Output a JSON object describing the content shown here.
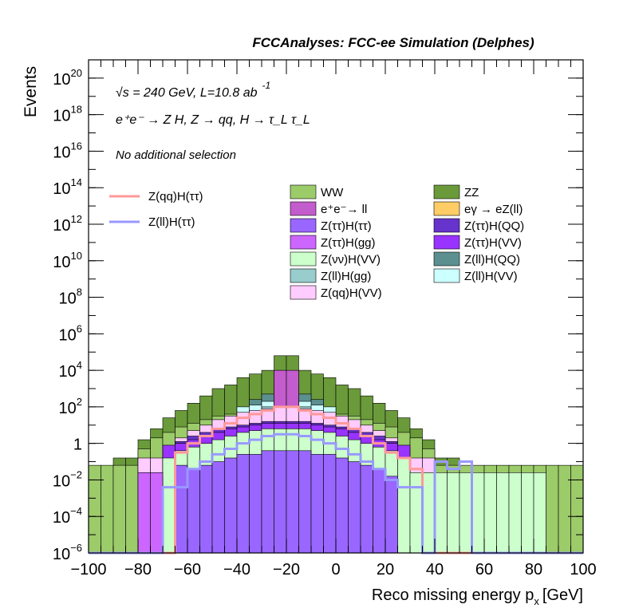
{
  "chart_data": {
    "type": "histogram",
    "title": "FCCAnalyses: FCC-ee Simulation (Delphes)",
    "xlabel": "Reco missing energy p",
    "xlabel_sub": "x",
    "xlabel_unit": "[GeV]",
    "ylabel": "Events",
    "xlim": [
      -100,
      100
    ],
    "ylim": [
      1e-06,
      1e+21
    ],
    "log_y": true,
    "grid": false,
    "bin_width": 5,
    "x_ticks": [
      "−100",
      "−80",
      "−60",
      "−40",
      "−20",
      "0",
      "20",
      "40",
      "60",
      "80",
      "100"
    ],
    "x_tick_values": [
      -100,
      -80,
      -60,
      -40,
      -20,
      0,
      20,
      40,
      60,
      80,
      100
    ],
    "y_ticks": [
      {
        "exp": -6,
        "base": "10",
        "sup": "−6"
      },
      {
        "exp": -4,
        "base": "10",
        "sup": "−4"
      },
      {
        "exp": -2,
        "base": "10",
        "sup": "−2"
      },
      {
        "exp": 0,
        "base": "1",
        "sup": ""
      },
      {
        "exp": 2,
        "base": "10",
        "sup": "2"
      },
      {
        "exp": 4,
        "base": "10",
        "sup": "4"
      },
      {
        "exp": 6,
        "base": "10",
        "sup": "6"
      },
      {
        "exp": 8,
        "base": "10",
        "sup": "8"
      },
      {
        "exp": 10,
        "base": "10",
        "sup": "10"
      },
      {
        "exp": 12,
        "base": "10",
        "sup": "12"
      },
      {
        "exp": 14,
        "base": "10",
        "sup": "14"
      },
      {
        "exp": 16,
        "base": "10",
        "sup": "16"
      },
      {
        "exp": 18,
        "base": "10",
        "sup": "18"
      },
      {
        "exp": 20,
        "base": "10",
        "sup": "20"
      }
    ],
    "annotations": {
      "line1": "√s = 240 GeV, L=10.8 ab",
      "line1_sup": "-1",
      "line2": "e⁺e⁻ → Z H, Z → qq, H → τ_L τ_L",
      "line3": "No additional selection"
    },
    "stack_layers": [
      {
        "name": "ZZ",
        "color": "#6a9a3a",
        "x_ranges": [
          -100,
          100
        ],
        "log10_totals": [
          -1.8,
          -1.8,
          -0.8,
          -0.8,
          0.2,
          0.8,
          1.4,
          1.8,
          2.2,
          2.6,
          3.0,
          3.2,
          3.6,
          3.8,
          4.0,
          4.8,
          4.8,
          4.0,
          3.8,
          3.6,
          3.2,
          3.0,
          2.6,
          2.2,
          1.8,
          1.4,
          0.8,
          0.2,
          -0.8,
          -0.8,
          -1.8,
          -1.8,
          -3.0,
          -3.0,
          -3.0,
          -3.0,
          -3.0,
          -3.0,
          -3.0,
          -3.0
        ]
      },
      {
        "name": "WW",
        "color": "#9ccb6a",
        "log10_totals": [
          -1.2,
          -1.2,
          -1.2,
          -1.2,
          -0.3,
          0.3,
          0.6,
          0.9,
          1.1,
          1.3,
          1.5,
          1.6,
          1.8,
          1.9,
          2.0,
          2.1,
          2.1,
          2.0,
          1.9,
          1.8,
          1.6,
          1.5,
          1.3,
          1.1,
          0.9,
          0.6,
          0.3,
          -0.3,
          -1.2,
          -1.2,
          -1.2,
          -1.2,
          -1.2,
          -1.2,
          -1.2,
          -1.2,
          -1.2,
          -1.2,
          -1.2,
          -1.2
        ]
      },
      {
        "name": "Z(ll)H(QQ)",
        "color": "#5c9090",
        "log10_totals": [
          null,
          null,
          null,
          null,
          null,
          null,
          null,
          null,
          null,
          null,
          null,
          null,
          null,
          2.4,
          2.7,
          3.3,
          3.3,
          2.7,
          2.4,
          null,
          null,
          null,
          null,
          null,
          null,
          null,
          null,
          null,
          null,
          null,
          null,
          null,
          null,
          null,
          null,
          null,
          null,
          null,
          null,
          null
        ]
      },
      {
        "name": "Z(ll)H(VV)",
        "color": "#ccffff",
        "log10_totals": [
          null,
          null,
          null,
          null,
          null,
          null,
          null,
          null,
          null,
          null,
          null,
          null,
          2.0,
          2.1,
          2.3,
          2.5,
          2.5,
          2.3,
          2.1,
          2.0,
          null,
          null,
          null,
          null,
          null,
          null,
          null,
          null,
          null,
          null,
          null,
          null,
          null,
          null,
          null,
          null,
          null,
          null,
          null,
          null
        ]
      },
      {
        "name": "Z(ll)H(gg)",
        "color": "#99cccc",
        "log10_totals": [
          null,
          null,
          null,
          null,
          null,
          null,
          null,
          null,
          null,
          null,
          null,
          null,
          null,
          null,
          2.0,
          2.6,
          2.6,
          2.0,
          null,
          null,
          null,
          null,
          null,
          null,
          null,
          null,
          null,
          null,
          null,
          null,
          null,
          null,
          null,
          null,
          null,
          null,
          null,
          null,
          null,
          null
        ]
      },
      {
        "name": "e⁺e⁻→ ll",
        "color": "#c35ccc",
        "log10_totals": [
          null,
          null,
          null,
          null,
          null,
          null,
          null,
          null,
          null,
          null,
          null,
          null,
          null,
          null,
          null,
          4.0,
          4.0,
          null,
          null,
          null,
          null,
          null,
          null,
          null,
          null,
          null,
          null,
          null,
          null,
          null,
          null,
          null,
          null,
          null,
          null,
          null,
          null,
          null,
          null,
          null
        ]
      },
      {
        "name": "eγ → eZ(ll)",
        "color": "#ffcc66",
        "log10_totals": [
          null,
          null,
          null,
          null,
          null,
          null,
          null,
          null,
          null,
          null,
          null,
          null,
          null,
          null,
          null,
          2.0,
          2.0,
          null,
          null,
          null,
          null,
          null,
          null,
          null,
          null,
          null,
          null,
          null,
          null,
          null,
          null,
          null,
          null,
          null,
          null,
          null,
          null,
          null,
          null,
          null
        ]
      },
      {
        "name": "Z(qq)H(VV)",
        "color": "#ffccff",
        "log10_totals": [
          null,
          null,
          null,
          null,
          -0.8,
          -0.8,
          -0.2,
          0.3,
          0.7,
          1.0,
          1.3,
          1.5,
          1.7,
          1.8,
          1.9,
          2.0,
          2.0,
          1.9,
          1.8,
          1.7,
          1.5,
          1.3,
          1.0,
          0.7,
          0.3,
          -0.2,
          -0.8,
          -0.8,
          null,
          null,
          null,
          null,
          null,
          null,
          null,
          null,
          null,
          null,
          null,
          null
        ]
      },
      {
        "name": "Z(ττ)H(QQ)",
        "color": "#6633cc",
        "log10_totals": [
          null,
          null,
          null,
          null,
          null,
          null,
          null,
          0.1,
          0.4,
          0.6,
          0.8,
          0.9,
          1.0,
          1.1,
          1.2,
          1.2,
          1.2,
          1.2,
          1.1,
          1.0,
          0.9,
          0.8,
          0.6,
          0.4,
          0.1,
          null,
          null,
          null,
          null,
          null,
          null,
          null,
          null,
          null,
          null,
          null,
          null,
          null,
          null,
          null
        ]
      },
      {
        "name": "Z(ττ)H(VV)",
        "color": "#9933ff",
        "log10_totals": [
          null,
          null,
          null,
          null,
          null,
          null,
          -0.1,
          0.0,
          0.2,
          0.4,
          0.6,
          0.8,
          0.9,
          1.0,
          1.1,
          1.1,
          1.1,
          1.1,
          1.0,
          0.9,
          0.8,
          0.6,
          0.4,
          0.2,
          0.0,
          -0.1,
          null,
          null,
          null,
          null,
          null,
          null,
          null,
          null,
          null,
          null,
          null,
          null,
          null,
          null
        ]
      },
      {
        "name": "Z(νν)H(VV)",
        "color": "#ccffcc",
        "log10_totals": [
          null,
          null,
          null,
          null,
          -1.6,
          -1.6,
          -0.8,
          -0.4,
          -0.2,
          0.0,
          0.2,
          0.4,
          0.6,
          0.7,
          0.8,
          0.8,
          0.8,
          0.8,
          0.7,
          0.6,
          0.4,
          0.2,
          0.0,
          -0.2,
          -0.4,
          -0.8,
          -1.6,
          -1.6,
          -1.6,
          -1.6,
          -1.6,
          -1.6,
          -1.6,
          -1.6,
          -1.6,
          -1.6,
          -1.6,
          null,
          null,
          null
        ]
      },
      {
        "name": "Z(ττ)H(ττ)",
        "color": "#9966ff",
        "log10_totals": [
          null,
          null,
          null,
          null,
          -1.8,
          -1.8,
          -6.0,
          -1.2,
          -1.4,
          -1.2,
          -1.0,
          -0.8,
          -0.6,
          -0.6,
          -0.4,
          -0.4,
          -0.4,
          -0.4,
          -0.6,
          -0.6,
          -0.8,
          -1.0,
          -1.2,
          -1.4,
          -1.8,
          -6.0,
          -6.0,
          null,
          null,
          null,
          null,
          null,
          null,
          null,
          null,
          null,
          null,
          null,
          null,
          null
        ]
      },
      {
        "name": "Z(ττ)H(gg)",
        "color": "#cc66ff",
        "log10_totals": [
          null,
          null,
          null,
          null,
          -1.6,
          -1.6,
          null,
          null,
          null,
          null,
          null,
          null,
          null,
          null,
          null,
          null,
          null,
          null,
          null,
          null,
          null,
          null,
          null,
          null,
          null,
          null,
          null,
          null,
          null,
          null,
          null,
          null,
          null,
          null,
          null,
          null,
          null,
          null,
          null,
          null
        ]
      }
    ],
    "lines": [
      {
        "name": "Z(qq)H(ττ)",
        "color": "#ff9999",
        "log10_values": [
          -6,
          -6,
          -6,
          -6,
          -6,
          -6,
          -6,
          -0.5,
          0.0,
          0.4,
          0.8,
          1.1,
          1.4,
          1.6,
          1.8,
          2.0,
          2.0,
          1.8,
          1.6,
          1.4,
          1.1,
          0.8,
          0.4,
          0.0,
          -0.5,
          -0.8,
          -1.4,
          -6,
          -6,
          -6,
          -6,
          -6,
          -6,
          -6,
          -6,
          -6,
          -6,
          -6,
          -6,
          -6
        ]
      },
      {
        "name": "Z(ll)H(ττ)",
        "color": "#9999ff",
        "log10_values": [
          -6,
          -6,
          -6,
          -6,
          -6,
          -6,
          -2.4,
          -2.4,
          -1.4,
          -1.0,
          -0.6,
          -0.3,
          0.0,
          0.2,
          0.4,
          0.5,
          0.5,
          0.4,
          0.2,
          0.0,
          -0.3,
          -0.6,
          -1.0,
          -1.4,
          -2.0,
          -2.4,
          -2.4,
          -6,
          -1.0,
          -1.4,
          -1.0,
          -6,
          -6,
          -6,
          -6,
          -6,
          -6,
          -6,
          -6,
          -6
        ]
      }
    ],
    "legend": {
      "placement": "top-right",
      "lines": [
        "Z(qq)H(ττ)",
        "Z(ll)H(ττ)"
      ],
      "col1": [
        "WW",
        "e⁺e⁻→ ll",
        "Z(ττ)H(ττ)",
        "Z(ττ)H(gg)",
        "Z(νν)H(VV)",
        "Z(ll)H(gg)",
        "Z(qq)H(VV)"
      ],
      "col2": [
        "ZZ",
        "eγ → eZ(ll)",
        "Z(ττ)H(QQ)",
        "Z(ττ)H(VV)",
        "Z(ll)H(QQ)",
        "Z(ll)H(VV)"
      ]
    }
  }
}
